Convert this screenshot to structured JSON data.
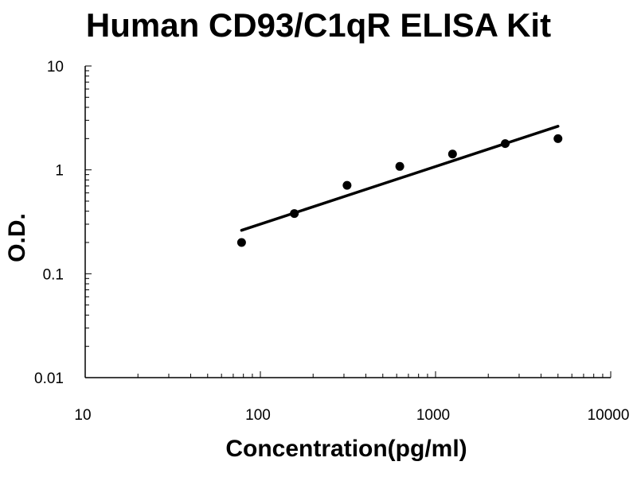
{
  "chart_data": {
    "type": "scatter",
    "title": "Human CD93/C1qR ELISA Kit",
    "xlabel": "Concentration(pg/ml)",
    "ylabel": "O.D.",
    "x_scale": "log",
    "y_scale": "log",
    "xlim": [
      10,
      10000
    ],
    "ylim": [
      0.01,
      10
    ],
    "x_ticks": [
      10,
      100,
      1000,
      10000
    ],
    "x_tick_labels": [
      "10",
      "100",
      "1000",
      "10000"
    ],
    "y_ticks": [
      0.01,
      0.1,
      1,
      10
    ],
    "y_tick_labels": [
      "0.01",
      "0.1",
      "1",
      "10"
    ],
    "grid": false,
    "series": [
      {
        "points": [
          {
            "x": 78.1,
            "y": 0.2
          },
          {
            "x": 156.3,
            "y": 0.38
          },
          {
            "x": 312.5,
            "y": 0.71
          },
          {
            "x": 625,
            "y": 1.08
          },
          {
            "x": 1250,
            "y": 1.42
          },
          {
            "x": 2500,
            "y": 1.79
          },
          {
            "x": 5000,
            "y": 2.0
          }
        ]
      }
    ],
    "trendline": {
      "type": "power",
      "points": [
        {
          "x": 78.1,
          "y": 0.262
        },
        {
          "x": 5000,
          "y": 2.63
        }
      ]
    },
    "colors": {
      "marker": "#000000",
      "line": "#000000"
    }
  }
}
